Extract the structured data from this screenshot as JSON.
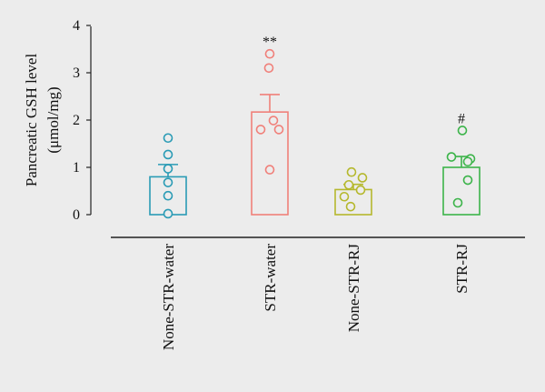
{
  "chart_data": {
    "type": "bar",
    "ylabel_line1": "Pancreatic GSH level",
    "ylabel_line2": "(μmol/mg)",
    "ylim": [
      0,
      4
    ],
    "yticks": [
      "0",
      "1",
      "2",
      "3",
      "4"
    ],
    "grid": false,
    "categories": [
      "None-STR-water",
      "STR-water",
      "None-STR-RJ",
      "STR-RJ"
    ],
    "values": [
      0.8,
      2.17,
      0.53,
      1.0
    ],
    "errors": [
      0.26,
      0.37,
      0.11,
      0.23
    ],
    "points": [
      [
        1.62,
        1.27,
        0.97,
        0.68,
        0.4,
        0.02
      ],
      [
        3.4,
        3.1,
        1.99,
        1.8,
        1.8,
        0.95
      ],
      [
        0.9,
        0.78,
        0.63,
        0.52,
        0.38,
        0.17
      ],
      [
        1.78,
        1.22,
        1.18,
        1.12,
        0.73,
        0.25
      ]
    ],
    "significance": [
      "",
      "**",
      "",
      "#"
    ],
    "colors": [
      "#2a9bb5",
      "#f0807a",
      "#b5b82d",
      "#3cb44a"
    ]
  }
}
